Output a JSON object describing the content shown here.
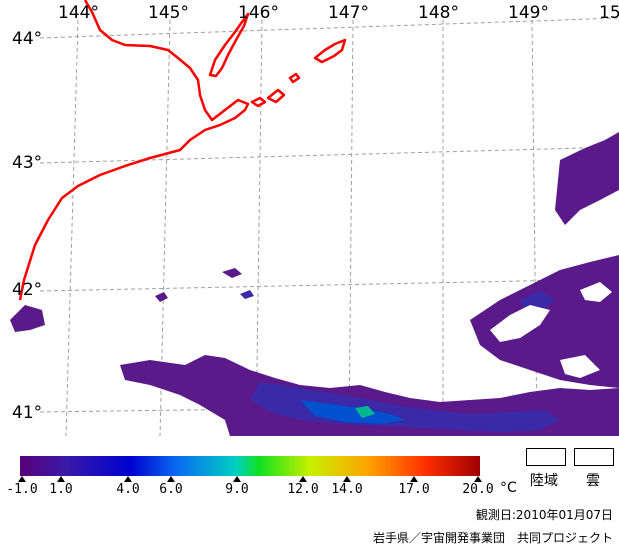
{
  "map": {
    "lon_labels": [
      "144°",
      "145°",
      "146°",
      "147°",
      "148°",
      "149°",
      "15"
    ],
    "lat_labels": [
      "44°",
      "43°",
      "42°",
      "41°"
    ],
    "coast_color": "#ff0000",
    "grid_color": "#a0a0a0"
  },
  "legend": {
    "ticks": [
      "-1.0",
      "1.0",
      "4.0",
      "6.0",
      "9.0",
      "12.0",
      "14.0",
      "17.0",
      "20.0"
    ],
    "tick_values": [
      -1,
      1,
      4,
      6,
      9,
      12,
      14,
      17,
      20
    ],
    "unit": "°C",
    "land_label": "陸域",
    "cloud_label": "雲",
    "colors": [
      "#5a007a",
      "#3a1aa8",
      "#0000d0",
      "#0a6af0",
      "#00d0c0",
      "#10e020",
      "#c8f000",
      "#ffa000",
      "#ff3000",
      "#a00000"
    ]
  },
  "observation_date": "観測日:2010年01月07日",
  "credit": "岩手県／宇宙開発事業団　共同プロジェクト"
}
